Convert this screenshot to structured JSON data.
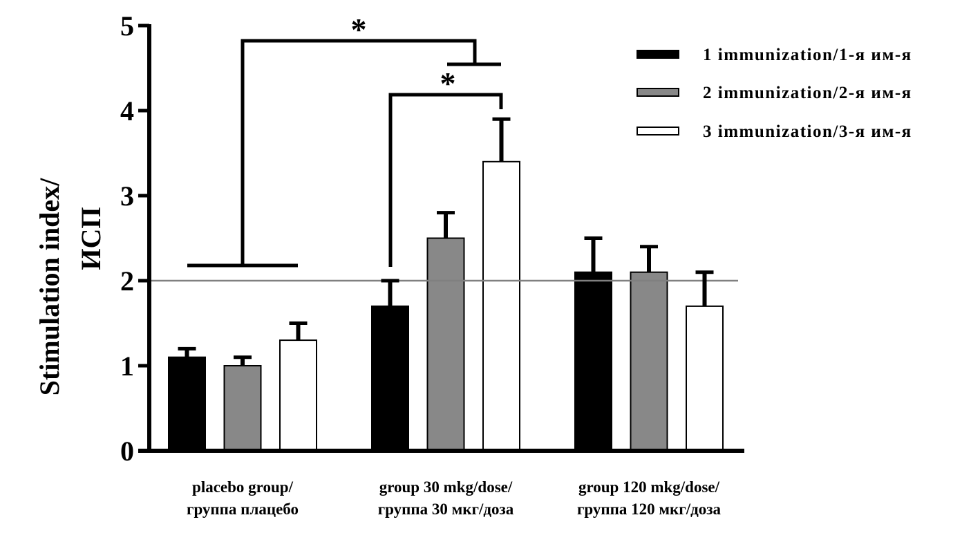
{
  "chart_data": {
    "type": "bar",
    "title": "",
    "xlabel": "",
    "ylabel": [
      "Stimulation index/",
      "ИСП"
    ],
    "ylim": [
      0,
      5
    ],
    "yticks": [
      0,
      1,
      2,
      3,
      4,
      5
    ],
    "grid": false,
    "reference_line": {
      "value": 2,
      "color": "#808080"
    },
    "categories": [
      [
        "placebo group/",
        "группа плацебо"
      ],
      [
        "group 30 mkg/dose/",
        "группа 30 мкг/доза"
      ],
      [
        "group 120 mkg/dose/",
        "группа 120 мкг/доза"
      ]
    ],
    "series": [
      {
        "name": "1 immunization/1-я им-я",
        "color": "#000000",
        "values": [
          1.1,
          1.7,
          2.1
        ],
        "error_upper": [
          1.2,
          2.0,
          2.5
        ]
      },
      {
        "name": "2 immunization/2-я им-я",
        "color": "#888888",
        "values": [
          1.0,
          2.5,
          2.1
        ],
        "error_upper": [
          1.1,
          2.8,
          2.4
        ]
      },
      {
        "name": "3 immunization/3-я им-я",
        "color": "#ffffff",
        "values": [
          1.3,
          3.4,
          1.7
        ],
        "error_upper": [
          1.5,
          3.9,
          2.1
        ]
      }
    ],
    "legend_position": "top-right",
    "annotations": [
      {
        "label": "*",
        "from": "placebo group (all immunizations)",
        "to": "group 30 mkg/dose (2 and 3 immunization)"
      },
      {
        "label": "*",
        "from": "group 30 mkg/dose, 1 immunization",
        "to": "group 30 mkg/dose, 3 immunization"
      }
    ]
  }
}
